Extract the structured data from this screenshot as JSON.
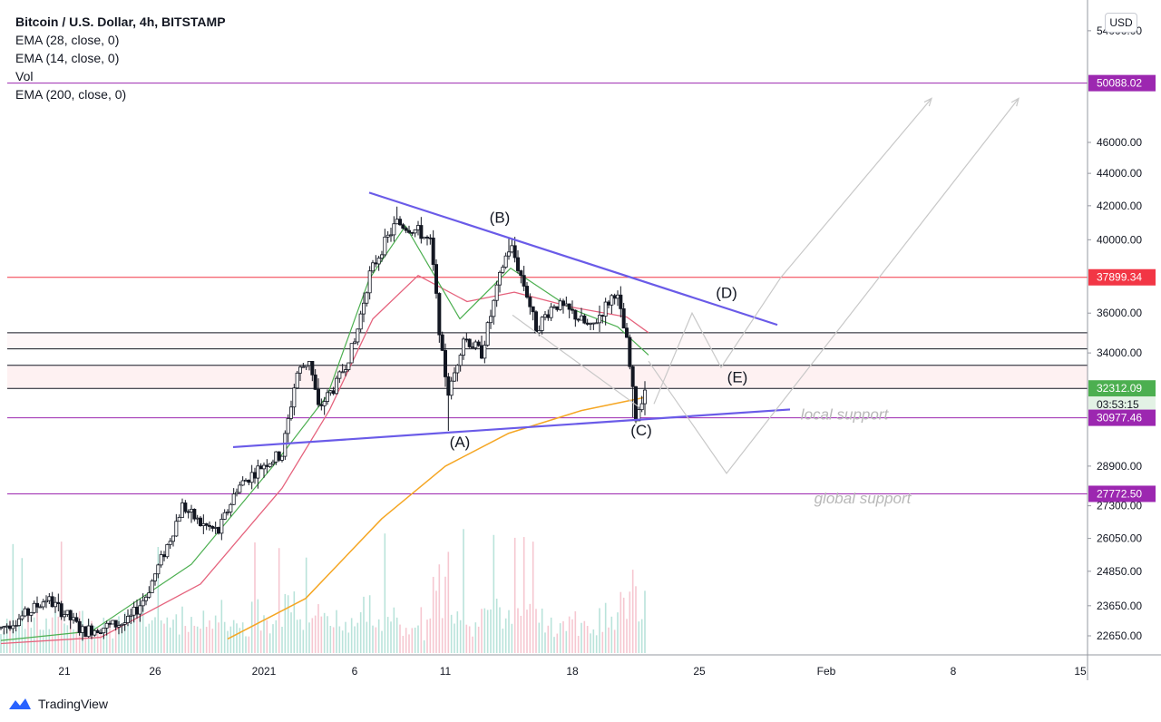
{
  "legend": {
    "title": "Bitcoin / U.S. Dollar, 4h, BITSTAMP",
    "lines": [
      "EMA (28, close, 0)",
      "EMA (14, close, 0)",
      "Vol",
      "EMA (200, close, 0)"
    ]
  },
  "currency_button": "USD",
  "footer": {
    "brand": "TradingView"
  },
  "colors": {
    "trendline": "#6a5be8",
    "ema200": "#f5a623",
    "ema28": "#e5637d",
    "ema14": "#4caf50",
    "purple_level": "#9c27b0",
    "red_level": "#f23645",
    "green_tag": "#4caf50",
    "projection": "#c8c8c8",
    "candle": "#131722"
  },
  "chart_data": {
    "type": "candlestick",
    "symbol": "Bitcoin / U.S. Dollar",
    "interval": "4h",
    "exchange": "BITSTAMP",
    "yscale": "log",
    "y_ticks": [
      22650,
      23650,
      24850,
      26050,
      27300,
      28900,
      34000,
      36000,
      40000,
      42000,
      44000,
      46000,
      54000
    ],
    "y_tick_labels": [
      "22650.00",
      "23650.00",
      "24850.00",
      "26050.00",
      "27300.00",
      "28900.00",
      "34000.00",
      "36000.00",
      "40000.00",
      "42000.00",
      "44000.00",
      "46000.00",
      "54000.00"
    ],
    "x_ticks": [
      {
        "label": "21",
        "day": 21
      },
      {
        "label": "26",
        "day": 26
      },
      {
        "label": "2021",
        "day": 32
      },
      {
        "label": "6",
        "day": 37
      },
      {
        "label": "11",
        "day": 42
      },
      {
        "label": "18",
        "day": 49
      },
      {
        "label": "25",
        "day": 56
      },
      {
        "label": "Feb",
        "day": 63
      },
      {
        "label": "8",
        "day": 70
      },
      {
        "label": "15",
        "day": 77
      }
    ],
    "price_levels": [
      {
        "value": 50088.02,
        "label": "50088.02",
        "color": "#9c27b0",
        "style": "purple"
      },
      {
        "value": 37899.34,
        "label": "37899.34",
        "color": "#f23645",
        "style": "red"
      },
      {
        "value": 32312.09,
        "label": "32312.09",
        "color": "#4caf50",
        "style": "last"
      },
      {
        "value": 30977.46,
        "label": "30977.46",
        "color": "#9c27b0",
        "style": "purple"
      },
      {
        "value": 27772.5,
        "label": "27772.50",
        "color": "#9c27b0",
        "style": "purple"
      }
    ],
    "countdown": "03:53:15",
    "horizontal_lines": [
      35000,
      34200,
      33400,
      32312
    ],
    "key_points": [
      {
        "day": 39.3,
        "price": 41950
      },
      {
        "day": 42.2,
        "price": 30400
      },
      {
        "day": 45.5,
        "price": 40100
      },
      {
        "day": 52.4,
        "price": 31000
      },
      {
        "day": 53.0,
        "price": 32312
      }
    ],
    "wave_labels": [
      {
        "text": "(A)",
        "day": 42.8,
        "price": 29700
      },
      {
        "text": "(B)",
        "day": 45.0,
        "price": 41000
      },
      {
        "text": "(C)",
        "day": 52.8,
        "price": 30200
      },
      {
        "text": "(D)",
        "day": 57.5,
        "price": 36800
      },
      {
        "text": "(E)",
        "day": 58.1,
        "price": 32600
      }
    ],
    "annotations": [
      {
        "text": "local support",
        "day": 64.0,
        "price": 30900
      },
      {
        "text": "global support",
        "day": 65.0,
        "price": 27400
      }
    ],
    "trendlines": [
      {
        "name": "upper",
        "from": {
          "day": 37.8,
          "price": 42800
        },
        "to": {
          "day": 60.3,
          "price": 35400
        }
      },
      {
        "name": "lower",
        "from": {
          "day": 30.3,
          "price": 29700
        },
        "to": {
          "day": 61.0,
          "price": 31350
        }
      }
    ],
    "projections": [
      {
        "name": "path-d-e",
        "points": [
          {
            "day": 53.5,
            "price": 31600
          },
          {
            "day": 55.6,
            "price": 36000
          },
          {
            "day": 57.2,
            "price": 33300
          },
          {
            "day": 60.5,
            "price": 37900
          },
          {
            "day": 68.8,
            "price": 49000
          }
        ]
      },
      {
        "name": "path-drop",
        "points": [
          {
            "day": 53.2,
            "price": 33600
          },
          {
            "day": 57.5,
            "price": 28600
          },
          {
            "day": 73.6,
            "price": 49000
          }
        ]
      },
      {
        "name": "path-c-side",
        "points": [
          {
            "day": 45.7,
            "price": 35900
          },
          {
            "day": 52.6,
            "price": 31500
          }
        ]
      }
    ],
    "ema200": [
      {
        "day": 30.0,
        "price": 22550
      },
      {
        "day": 34.3,
        "price": 23900
      },
      {
        "day": 38.5,
        "price": 26800
      },
      {
        "day": 42.0,
        "price": 28900
      },
      {
        "day": 45.5,
        "price": 30300
      },
      {
        "day": 49.5,
        "price": 31300
      },
      {
        "day": 53.0,
        "price": 31900
      }
    ],
    "ema28": [
      {
        "day": 17.5,
        "price": 22400
      },
      {
        "day": 23.0,
        "price": 22600
      },
      {
        "day": 28.5,
        "price": 24400
      },
      {
        "day": 33.0,
        "price": 28000
      },
      {
        "day": 35.6,
        "price": 31300
      },
      {
        "day": 38.0,
        "price": 35700
      },
      {
        "day": 40.5,
        "price": 38000
      },
      {
        "day": 43.2,
        "price": 36600
      },
      {
        "day": 45.8,
        "price": 37100
      },
      {
        "day": 49.0,
        "price": 36300
      },
      {
        "day": 52.0,
        "price": 35800
      },
      {
        "day": 53.2,
        "price": 35000
      }
    ],
    "ema14": [
      {
        "day": 17.5,
        "price": 22500
      },
      {
        "day": 22.5,
        "price": 22800
      },
      {
        "day": 28.0,
        "price": 25100
      },
      {
        "day": 32.5,
        "price": 28900
      },
      {
        "day": 35.5,
        "price": 32000
      },
      {
        "day": 37.8,
        "price": 37800
      },
      {
        "day": 39.8,
        "price": 40800
      },
      {
        "day": 42.8,
        "price": 35700
      },
      {
        "day": 45.6,
        "price": 38400
      },
      {
        "day": 49.0,
        "price": 36200
      },
      {
        "day": 51.5,
        "price": 35300
      },
      {
        "day": 53.2,
        "price": 33900
      }
    ],
    "price_path": [
      {
        "day": 17.5,
        "price": 22900
      },
      {
        "day": 19.0,
        "price": 23400
      },
      {
        "day": 20.0,
        "price": 23900
      },
      {
        "day": 21.0,
        "price": 23400
      },
      {
        "day": 22.0,
        "price": 22800
      },
      {
        "day": 24.5,
        "price": 23100
      },
      {
        "day": 25.5,
        "price": 24000
      },
      {
        "day": 26.8,
        "price": 26000
      },
      {
        "day": 27.5,
        "price": 27300
      },
      {
        "day": 28.5,
        "price": 26600
      },
      {
        "day": 29.5,
        "price": 26300
      },
      {
        "day": 30.5,
        "price": 28000
      },
      {
        "day": 32.0,
        "price": 29000
      },
      {
        "day": 33.0,
        "price": 29400
      },
      {
        "day": 33.8,
        "price": 33000
      },
      {
        "day": 34.5,
        "price": 33700
      },
      {
        "day": 35.0,
        "price": 31400
      },
      {
        "day": 36.0,
        "price": 32500
      },
      {
        "day": 37.0,
        "price": 34500
      },
      {
        "day": 37.8,
        "price": 38000
      },
      {
        "day": 38.5,
        "price": 39500
      },
      {
        "day": 39.3,
        "price": 41000
      },
      {
        "day": 40.5,
        "price": 40500
      },
      {
        "day": 41.2,
        "price": 39800
      },
      {
        "day": 41.8,
        "price": 34000
      },
      {
        "day": 42.2,
        "price": 32000
      },
      {
        "day": 43.0,
        "price": 34800
      },
      {
        "day": 44.0,
        "price": 34000
      },
      {
        "day": 45.2,
        "price": 38700
      },
      {
        "day": 45.6,
        "price": 39700
      },
      {
        "day": 46.5,
        "price": 37000
      },
      {
        "day": 47.0,
        "price": 35200
      },
      {
        "day": 48.0,
        "price": 36500
      },
      {
        "day": 49.0,
        "price": 36000
      },
      {
        "day": 50.0,
        "price": 35200
      },
      {
        "day": 51.0,
        "price": 36600
      },
      {
        "day": 51.4,
        "price": 37200
      },
      {
        "day": 52.0,
        "price": 34500
      },
      {
        "day": 52.5,
        "price": 31000
      },
      {
        "day": 53.0,
        "price": 32312
      }
    ],
    "volume_note": "volume histogram at bottom"
  }
}
